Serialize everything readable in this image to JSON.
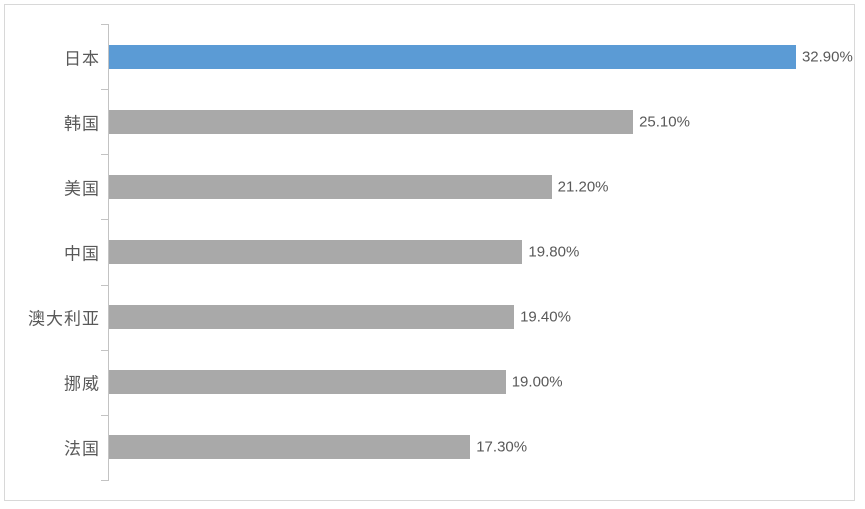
{
  "figure": {
    "background": "#ffffff",
    "border_color": "#d8d8d8"
  },
  "chart_data": {
    "type": "bar",
    "orientation": "horizontal",
    "title": "",
    "xlabel": "",
    "ylabel": "",
    "categories": [
      "日本",
      "韩国",
      "美国",
      "中国",
      "澳大利亚",
      "挪威",
      "法国"
    ],
    "values": [
      32.9,
      25.1,
      21.2,
      19.8,
      19.4,
      19.0,
      17.3
    ],
    "data_labels": [
      "32.90%",
      "25.10%",
      "21.20%",
      "19.80%",
      "19.40%",
      "19.00%",
      "17.30%"
    ],
    "xlim": [
      0,
      35
    ],
    "grid": false,
    "legend": "none",
    "highlight_index": 0,
    "colors": {
      "highlight_bar": "#5b9bd5",
      "default_bar": "#a9a9a9",
      "axis": "#c3c3c3",
      "label_text": "#595959"
    }
  }
}
